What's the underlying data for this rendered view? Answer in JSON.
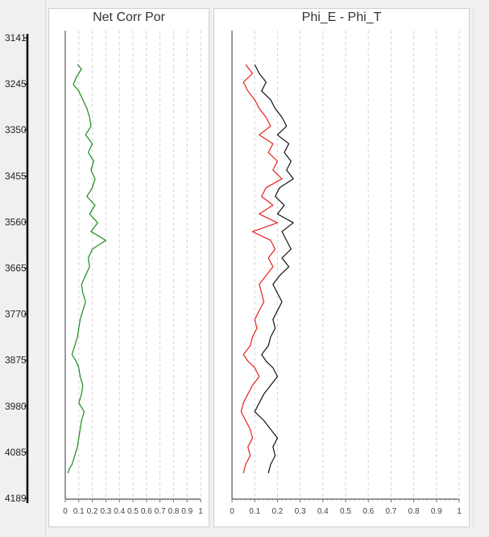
{
  "depth_axis": {
    "labels": [
      "3141",
      "3245",
      "3350",
      "3455",
      "3560",
      "3665",
      "3770",
      "3875",
      "3980",
      "4085",
      "4189"
    ],
    "min": 3141,
    "max": 4189
  },
  "tracks": {
    "netcorr_title": "Net Corr Por",
    "phi_title": "Phi_E - Phi_T"
  },
  "colors": {
    "net_corr_por": "#1a8a1a",
    "phi_e": "#e8201a",
    "phi_t": "#111111",
    "grid": "#d6d6d6"
  },
  "chart_data": [
    {
      "type": "line",
      "title": "Net Corr Por",
      "xlim": [
        0,
        1
      ],
      "ylim": [
        3141,
        4189
      ],
      "y_inverted": true,
      "x_tick_labels": [
        "0",
        "0.1",
        "0.2",
        "0.3",
        "0.4",
        "0.5",
        "0.6",
        "0.7",
        "0.8",
        "0.9",
        "1"
      ],
      "grid": true,
      "series": [
        {
          "color": "#1a8a1a",
          "depth": [
            3200,
            3210,
            3220,
            3230,
            3245,
            3260,
            3280,
            3300,
            3320,
            3340,
            3360,
            3380,
            3400,
            3420,
            3440,
            3460,
            3480,
            3500,
            3520,
            3540,
            3560,
            3580,
            3600,
            3620,
            3640,
            3660,
            3680,
            3700,
            3720,
            3740,
            3760,
            3780,
            3800,
            3820,
            3840,
            3860,
            3875,
            3890,
            3910,
            3930,
            3950,
            3970,
            3990,
            4010,
            4030,
            4050,
            4070,
            4090,
            4110,
            4120,
            4130
          ],
          "value": [
            0.09,
            0.12,
            0.1,
            0.08,
            0.06,
            0.1,
            0.13,
            0.16,
            0.18,
            0.19,
            0.15,
            0.2,
            0.17,
            0.21,
            0.19,
            0.22,
            0.2,
            0.16,
            0.22,
            0.18,
            0.24,
            0.19,
            0.3,
            0.2,
            0.17,
            0.18,
            0.15,
            0.12,
            0.13,
            0.15,
            0.13,
            0.11,
            0.1,
            0.09,
            0.07,
            0.05,
            0.08,
            0.1,
            0.11,
            0.13,
            0.12,
            0.1,
            0.14,
            0.12,
            0.11,
            0.1,
            0.09,
            0.07,
            0.05,
            0.03,
            0.02
          ]
        }
      ]
    },
    {
      "type": "line",
      "title": "Phi_E - Phi_T",
      "xlim": [
        0,
        1
      ],
      "ylim": [
        3141,
        4189
      ],
      "y_inverted": true,
      "x_tick_labels": [
        "0",
        "0.1",
        "0.2",
        "0.3",
        "0.4",
        "0.5",
        "0.6",
        "0.7",
        "0.8",
        "0.9",
        "1"
      ],
      "grid": true,
      "series": [
        {
          "color": "#e8201a",
          "depth": [
            3200,
            3220,
            3240,
            3260,
            3280,
            3300,
            3320,
            3340,
            3360,
            3380,
            3400,
            3420,
            3440,
            3460,
            3480,
            3500,
            3520,
            3540,
            3560,
            3580,
            3600,
            3620,
            3640,
            3660,
            3680,
            3700,
            3720,
            3740,
            3760,
            3780,
            3800,
            3820,
            3840,
            3860,
            3875,
            3890,
            3910,
            3930,
            3950,
            3970,
            3990,
            4010,
            4030,
            4050,
            4070,
            4090,
            4110,
            4130
          ],
          "value": [
            0.06,
            0.09,
            0.05,
            0.07,
            0.1,
            0.12,
            0.15,
            0.17,
            0.12,
            0.18,
            0.16,
            0.2,
            0.18,
            0.22,
            0.15,
            0.13,
            0.18,
            0.12,
            0.2,
            0.09,
            0.17,
            0.19,
            0.16,
            0.18,
            0.15,
            0.12,
            0.13,
            0.14,
            0.12,
            0.1,
            0.11,
            0.09,
            0.08,
            0.05,
            0.07,
            0.1,
            0.12,
            0.09,
            0.07,
            0.05,
            0.04,
            0.06,
            0.08,
            0.09,
            0.07,
            0.08,
            0.06,
            0.05
          ]
        },
        {
          "color": "#111111",
          "depth": [
            3200,
            3220,
            3240,
            3260,
            3280,
            3300,
            3320,
            3340,
            3360,
            3380,
            3400,
            3420,
            3440,
            3460,
            3480,
            3500,
            3520,
            3540,
            3560,
            3580,
            3600,
            3620,
            3640,
            3660,
            3680,
            3700,
            3720,
            3740,
            3760,
            3780,
            3800,
            3820,
            3840,
            3860,
            3875,
            3890,
            3910,
            3930,
            3950,
            3970,
            3990,
            4010,
            4030,
            4050,
            4070,
            4090,
            4110,
            4130
          ],
          "value": [
            0.1,
            0.12,
            0.15,
            0.13,
            0.17,
            0.19,
            0.22,
            0.24,
            0.2,
            0.25,
            0.23,
            0.26,
            0.24,
            0.27,
            0.21,
            0.19,
            0.23,
            0.2,
            0.27,
            0.22,
            0.24,
            0.26,
            0.22,
            0.25,
            0.21,
            0.18,
            0.2,
            0.22,
            0.2,
            0.18,
            0.19,
            0.17,
            0.16,
            0.13,
            0.15,
            0.18,
            0.2,
            0.17,
            0.14,
            0.12,
            0.1,
            0.14,
            0.17,
            0.2,
            0.18,
            0.19,
            0.17,
            0.16
          ]
        }
      ]
    }
  ]
}
